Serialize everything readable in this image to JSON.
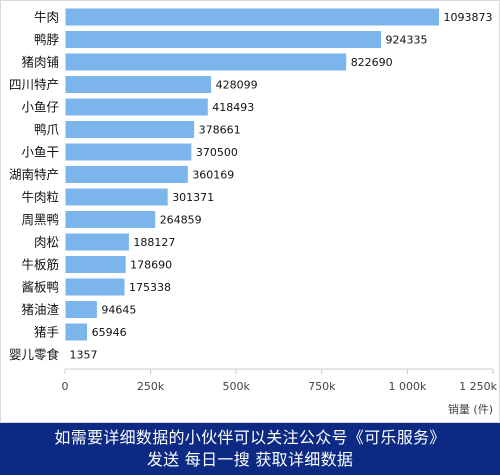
{
  "chart_data": {
    "type": "bar",
    "orientation": "horizontal",
    "categories": [
      "牛肉",
      "鸭脖",
      "猪肉铺",
      "四川特产",
      "小鱼仔",
      "鸭爪",
      "小鱼干",
      "湖南特产",
      "牛肉粒",
      "周黑鸭",
      "肉松",
      "牛板筋",
      "酱板鸭",
      "猪油渣",
      "猪手",
      "婴儿零食"
    ],
    "values": [
      1093873,
      924335,
      822690,
      428099,
      418493,
      378661,
      370500,
      360169,
      301371,
      264859,
      188127,
      178690,
      175338,
      94645,
      65946,
      1357
    ],
    "value_labels": [
      "1093873",
      "924335",
      "822690",
      "428099",
      "418493",
      "378661",
      "370500",
      "360169",
      "301371",
      "264859",
      "188127",
      "178690",
      "175338",
      "94645",
      "65946",
      "1357"
    ],
    "x_ticks": [
      "0",
      "250k",
      "500k",
      "750k",
      "1 000k",
      "1 250k"
    ],
    "x_tick_values": [
      0,
      250000,
      500000,
      750000,
      1000000,
      1250000
    ],
    "xlim": [
      0,
      1250000
    ],
    "xlabel": "销量 (件)",
    "ylabel": "",
    "title": "",
    "grid": false,
    "legend": "none",
    "colors": {
      "bar": "#7cb5ec",
      "bar_stroke": "#ffffff",
      "axis": "#cccccc"
    }
  },
  "footer": {
    "line1": "如需要详细数据的小伙伴可以关注公众号《可乐服务》",
    "line2": "发送  每日一搜  获取详细数据",
    "background": "#0c2a83"
  }
}
